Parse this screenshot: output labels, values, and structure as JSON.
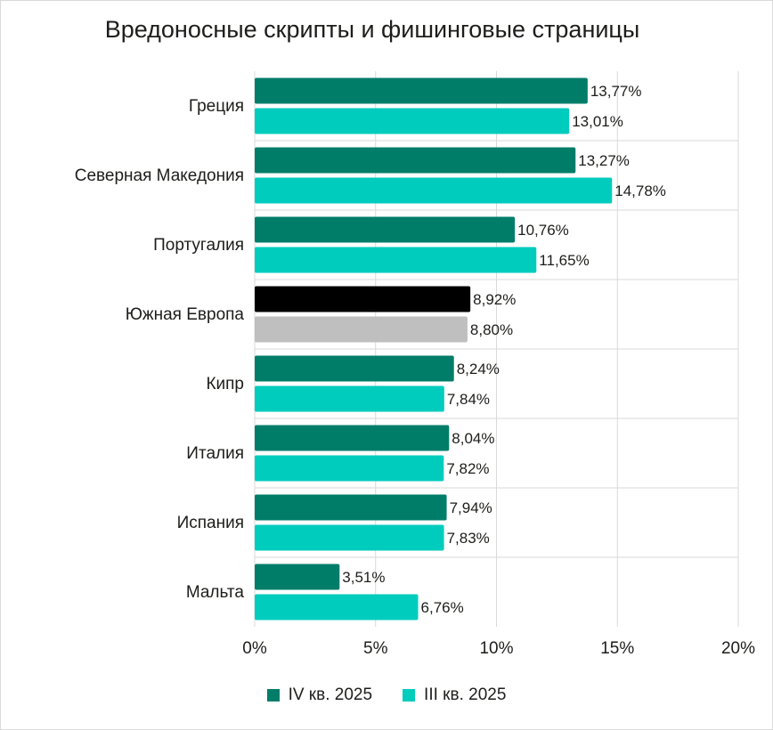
{
  "chart_data": {
    "type": "bar",
    "orientation": "horizontal",
    "title": "Вредоносные скрипты и фишинговые страницы",
    "categories": [
      "Греция",
      "Северная Македония",
      "Португалия",
      "Южная Европа",
      "Кипр",
      "Италия",
      "Испания",
      "Мальта"
    ],
    "series": [
      {
        "name": "IV кв. 2025",
        "color": "#007d69",
        "values": [
          13.77,
          13.27,
          10.76,
          8.92,
          8.24,
          8.04,
          7.94,
          3.51
        ],
        "labels": [
          "13,77%",
          "13,27%",
          "10,76%",
          "8,92%",
          "8,24%",
          "8,04%",
          "7,94%",
          "3,51%"
        ]
      },
      {
        "name": "III кв. 2025",
        "color": "#00ccbe",
        "values": [
          13.01,
          14.78,
          11.65,
          8.8,
          7.84,
          7.82,
          7.83,
          6.76
        ],
        "labels": [
          "13,01%",
          "14,78%",
          "11,65%",
          "8,80%",
          "7,84%",
          "7,82%",
          "7,83%",
          "6,76%"
        ]
      }
    ],
    "highlight": {
      "category": "Южная Европа",
      "colors": [
        "#000000",
        "#bfbfbf"
      ]
    },
    "xlim": [
      0,
      20
    ],
    "xticks": [
      0,
      5,
      10,
      15,
      20
    ],
    "xtick_labels": [
      "0%",
      "5%",
      "10%",
      "15%",
      "20%"
    ],
    "grid": true,
    "legend_position": "bottom"
  }
}
